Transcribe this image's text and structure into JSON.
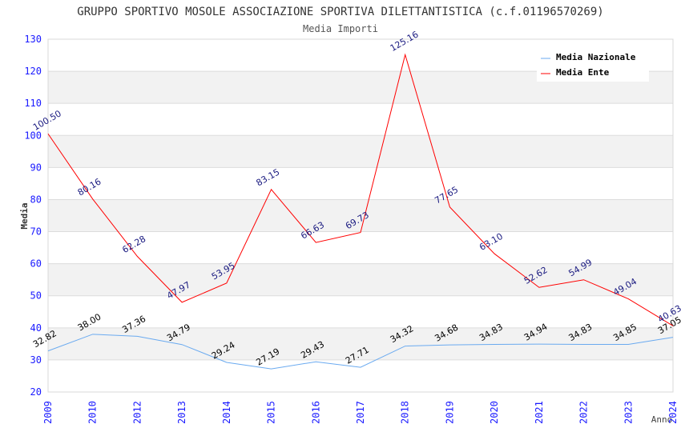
{
  "chart_data": {
    "type": "line",
    "title": "GRUPPO SPORTIVO MOSOLE ASSOCIAZIONE SPORTIVA DILETTANTISTICA (c.f.01196570269)",
    "subtitle": "Media Importi",
    "xlabel": "Anno",
    "ylabel": "Media",
    "ylim": [
      20,
      130
    ],
    "yticks": [
      20,
      30,
      40,
      50,
      60,
      70,
      80,
      90,
      100,
      110,
      120,
      130
    ],
    "categories": [
      "2009",
      "2010",
      "2012",
      "2013",
      "2014",
      "2015",
      "2016",
      "2017",
      "2018",
      "2019",
      "2020",
      "2021",
      "2022",
      "2023",
      "2024"
    ],
    "legend_position": "top-right",
    "series": [
      {
        "name": "Media Nazionale",
        "color": "#6aaaf0",
        "label_color": "#000000",
        "values": [
          32.82,
          38.0,
          37.36,
          34.79,
          29.24,
          27.19,
          29.43,
          27.71,
          34.32,
          34.68,
          34.83,
          34.94,
          34.83,
          34.85,
          37.05
        ]
      },
      {
        "name": "Media Ente",
        "color": "#ff0000",
        "label_color": "#1a1a80",
        "values": [
          100.5,
          80.16,
          62.28,
          47.97,
          53.95,
          83.15,
          66.63,
          69.73,
          125.16,
          77.65,
          63.1,
          52.62,
          54.99,
          49.04,
          40.63
        ]
      }
    ]
  }
}
